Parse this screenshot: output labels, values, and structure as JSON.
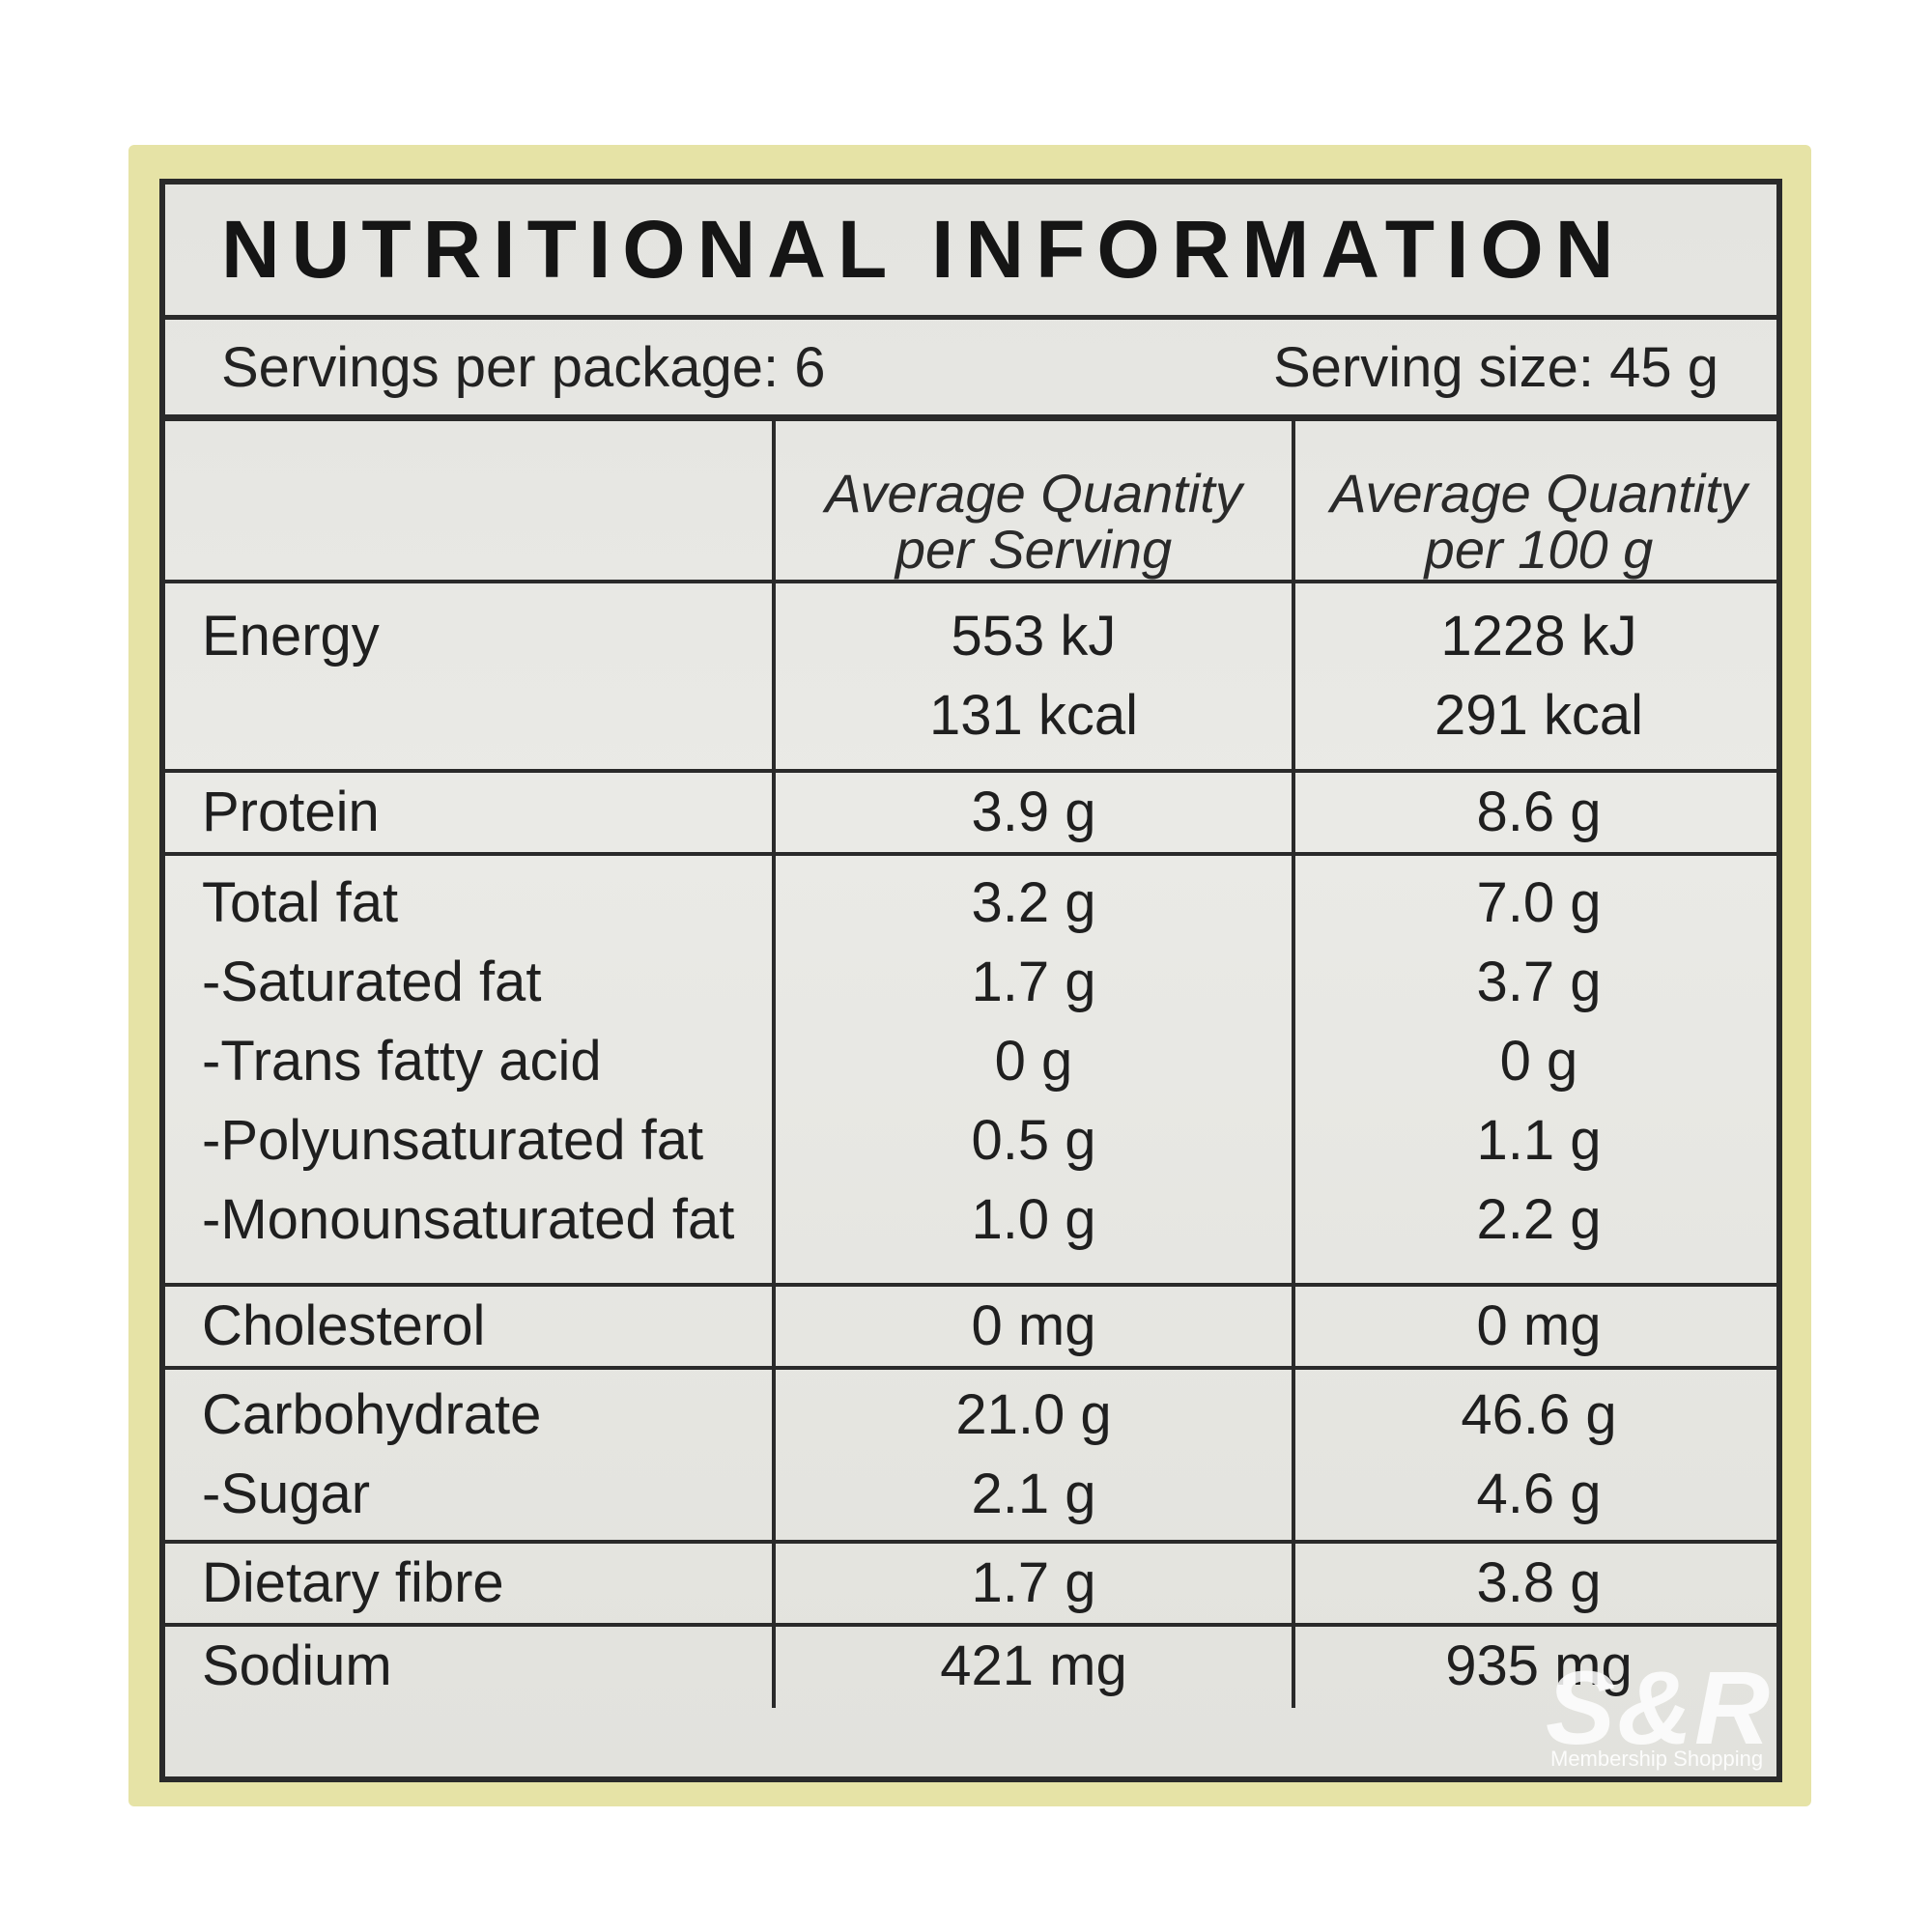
{
  "title": "NUTRITIONAL INFORMATION",
  "servings_per_package": "Servings per package: 6",
  "serving_size": "Serving size: 45 g",
  "columns": {
    "per_serving": [
      "Average Quantity",
      "per Serving"
    ],
    "per_100g": [
      "Average Quantity",
      "per 100 g"
    ]
  },
  "rows": [
    {
      "labels": [
        "Energy",
        ""
      ],
      "serving": [
        "553 kJ",
        "131 kcal"
      ],
      "per100": [
        "1228 kJ",
        "291 kcal"
      ]
    },
    {
      "labels": [
        "Protein"
      ],
      "serving": [
        "3.9 g"
      ],
      "per100": [
        "8.6 g"
      ]
    },
    {
      "labels": [
        "Total fat",
        "-Saturated fat",
        "-Trans fatty acid",
        "-Polyunsaturated fat",
        "-Monounsaturated fat"
      ],
      "serving": [
        "3.2 g",
        "1.7 g",
        "0 g",
        "0.5 g",
        "1.0 g"
      ],
      "per100": [
        "7.0 g",
        "3.7 g",
        "0 g",
        "1.1 g",
        "2.2 g"
      ]
    },
    {
      "labels": [
        "Cholesterol"
      ],
      "serving": [
        "0 mg"
      ],
      "per100": [
        "0 mg"
      ]
    },
    {
      "labels": [
        "Carbohydrate",
        "-Sugar"
      ],
      "serving": [
        "21.0 g",
        "2.1 g"
      ],
      "per100": [
        "46.6 g",
        "4.6 g"
      ]
    },
    {
      "labels": [
        "Dietary fibre"
      ],
      "serving": [
        "1.7 g"
      ],
      "per100": [
        "3.8 g"
      ]
    },
    {
      "labels": [
        "Sodium"
      ],
      "serving": [
        "421 mg"
      ],
      "per100": [
        "935 mg"
      ]
    }
  ],
  "watermark": {
    "brand": "S&R",
    "tagline": "Membership Shopping"
  }
}
